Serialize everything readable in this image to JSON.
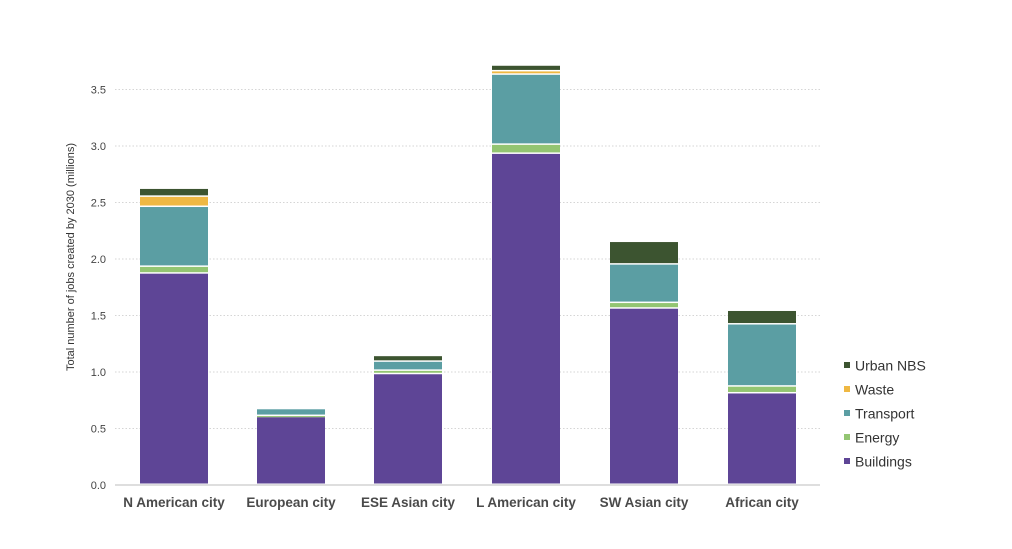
{
  "chart_data": {
    "type": "bar",
    "stacked": true,
    "title": "",
    "xlabel": "",
    "ylabel": "Total number of jobs created by 2030 (millions)",
    "ylim": [
      0,
      3.75
    ],
    "yticks": [
      0.0,
      0.5,
      1.0,
      1.5,
      2.0,
      2.5,
      3.0,
      3.5
    ],
    "ytick_labels": [
      "0.0",
      "0.5",
      "1.0",
      "1.5",
      "2.0",
      "2.5",
      "3.0",
      "3.5"
    ],
    "grid": true,
    "legend_position": "right",
    "categories": [
      "N American city",
      "European city",
      "ESE Asian city",
      "L American city",
      "SW Asian city",
      "African city"
    ],
    "series": [
      {
        "name": "Buildings",
        "color": "#5e4596",
        "values": [
          1.87,
          0.6,
          0.98,
          2.93,
          1.56,
          0.81
        ]
      },
      {
        "name": "Energy",
        "color": "#93c572",
        "values": [
          0.06,
          0.01,
          0.03,
          0.08,
          0.05,
          0.06
        ]
      },
      {
        "name": "Transport",
        "color": "#5b9ea3",
        "values": [
          0.53,
          0.06,
          0.08,
          0.62,
          0.34,
          0.55
        ]
      },
      {
        "name": "Waste",
        "color": "#efb843",
        "values": [
          0.09,
          0.0,
          0.0,
          0.03,
          0.0,
          0.0
        ]
      },
      {
        "name": "Urban NBS",
        "color": "#3c5430",
        "values": [
          0.07,
          0.0,
          0.05,
          0.05,
          0.2,
          0.12
        ]
      }
    ],
    "legend_order": [
      "Urban NBS",
      "Waste",
      "Transport",
      "Energy",
      "Buildings"
    ]
  }
}
